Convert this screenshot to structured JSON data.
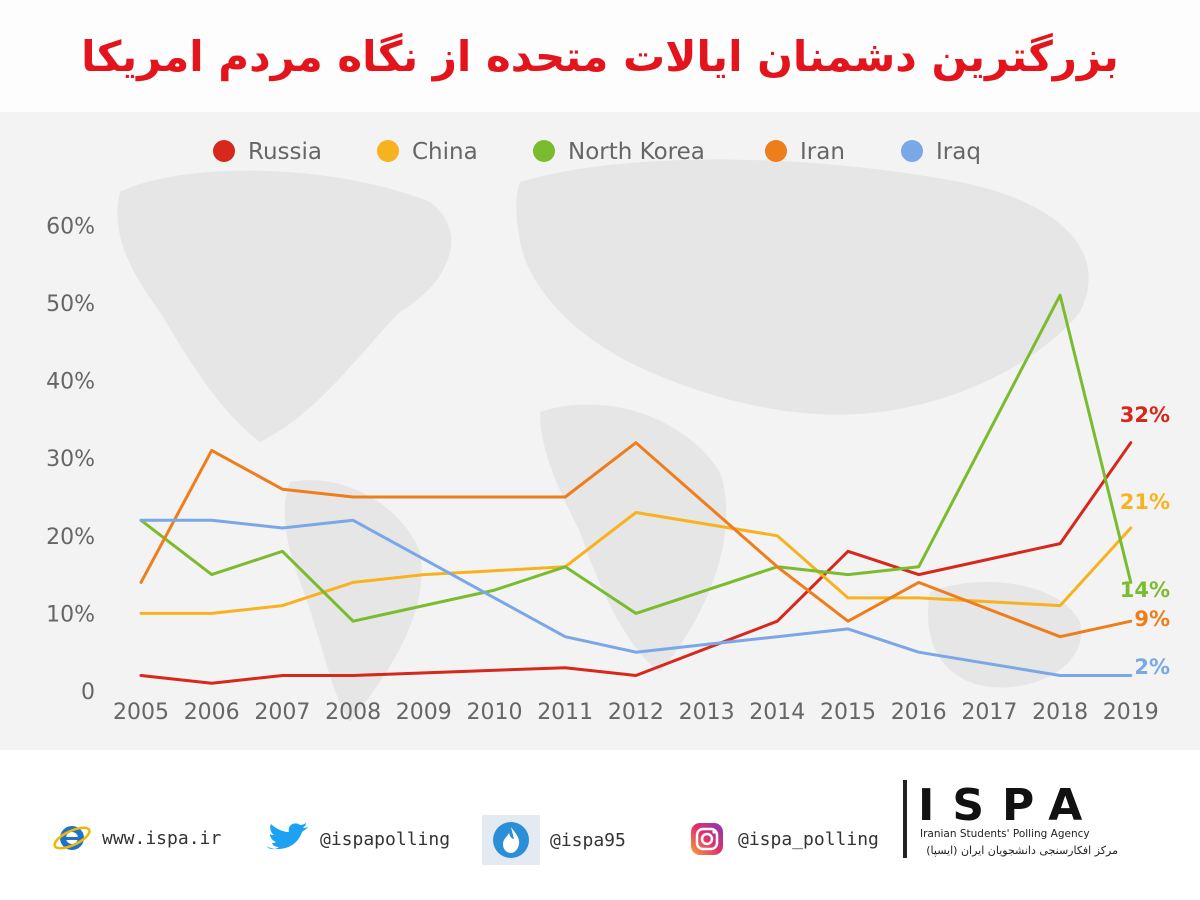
{
  "title": "بزرگترین دشمنان ایالات متحده از نگاه مردم امریکا",
  "chart_data": {
    "type": "line",
    "x": [
      "2005",
      "2006",
      "2007",
      "2008",
      "2009",
      "2010",
      "2011",
      "2012",
      "2013",
      "2014",
      "2015",
      "2016",
      "2017",
      "2018",
      "2019"
    ],
    "y_ticks": [
      "0",
      "10%",
      "20%",
      "30%",
      "40%",
      "50%",
      "60%"
    ],
    "ylim": [
      0,
      60
    ],
    "legend_position": "top",
    "grid": false,
    "series": [
      {
        "name": "Russia",
        "color": "#d6281c",
        "values": [
          2,
          1,
          2,
          2,
          null,
          null,
          3,
          2,
          null,
          9,
          18,
          15,
          null,
          19,
          32
        ],
        "end_label": "32%"
      },
      {
        "name": "China",
        "color": "#f7b21f",
        "values": [
          10,
          10,
          11,
          14,
          15,
          15.5,
          16,
          23,
          null,
          20,
          12,
          12,
          null,
          11,
          21
        ],
        "end_label": "21%"
      },
      {
        "name": "North Korea",
        "color": "#7bbb2e",
        "values": [
          22,
          15,
          18,
          9,
          11,
          13,
          16,
          10,
          null,
          16,
          15,
          16,
          null,
          51,
          14
        ],
        "end_label": "14%"
      },
      {
        "name": "Iran",
        "color": "#ee7d1b",
        "values": [
          14,
          31,
          26,
          25,
          25,
          25,
          25,
          32,
          null,
          16,
          9,
          14,
          null,
          7,
          9
        ],
        "end_label": "9%"
      },
      {
        "name": "Iraq",
        "color": "#7aa7e6",
        "values": [
          22,
          22,
          21,
          22,
          17,
          12,
          7,
          5,
          6,
          7,
          8,
          5,
          null,
          2,
          2
        ],
        "end_label": "2%"
      }
    ]
  },
  "footer": {
    "website": "www.ispa.ir",
    "twitter": "@ispapolling",
    "app": "@ispa95",
    "instagram": "@ispa_polling",
    "brand_logo": "ISPA",
    "brand_en": "Iranian Students' Polling Agency",
    "brand_fa": "مرکز افکارسنجی دانشجویان ایران (ایسپا)"
  },
  "icons": {
    "website": "internet-explorer-icon",
    "twitter": "twitter-bird-icon",
    "app": "flame-app-icon",
    "instagram": "instagram-icon"
  }
}
